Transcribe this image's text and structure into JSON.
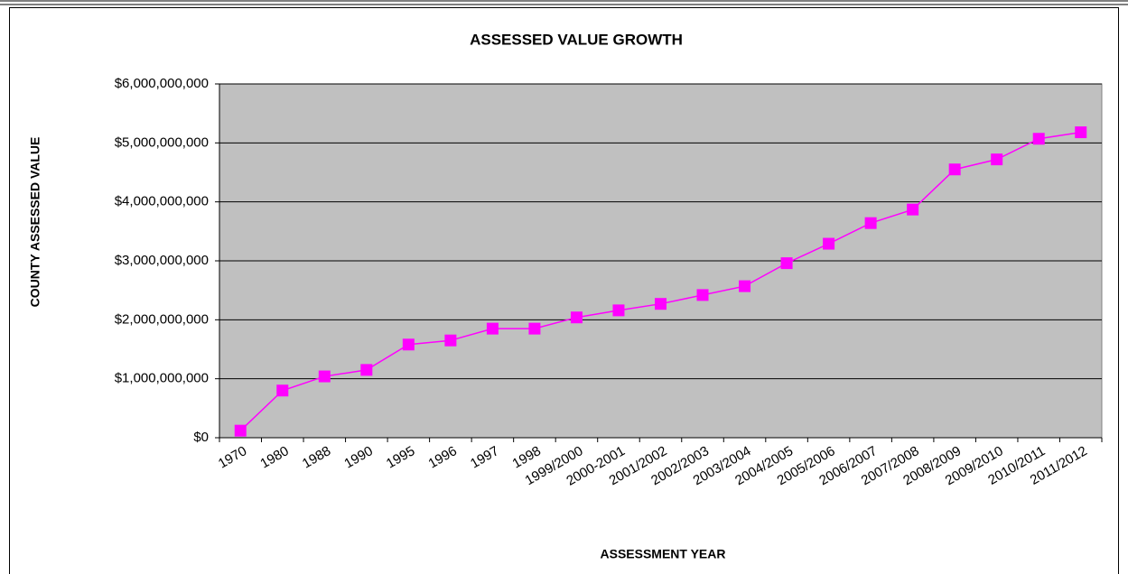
{
  "chart_data": {
    "type": "line",
    "title": "ASSESSED VALUE GROWTH",
    "x_label": "ASSESSMENT  YEAR",
    "y_label": "COUNTY ASSESSED  VALUE",
    "categories": [
      "1970",
      "1980",
      "1988",
      "1990",
      "1995",
      "1996",
      "1997",
      "1998",
      "1999/2000",
      "2000-2001",
      "2001/2002",
      "2002/2003",
      "2003/2004",
      "2004/2005",
      "2005/2006",
      "2006/2007",
      "2007/2008",
      "2008/2009",
      "2009/2010",
      "2010/2011",
      "2011/2012"
    ],
    "values": [
      120000000,
      800000000,
      1040000000,
      1150000000,
      1580000000,
      1650000000,
      1850000000,
      1850000000,
      2040000000,
      2160000000,
      2270000000,
      2420000000,
      2570000000,
      2960000000,
      3290000000,
      3640000000,
      3870000000,
      4550000000,
      4720000000,
      5070000000,
      5180000000
    ],
    "color": "#ff00ff",
    "ylim": [
      0,
      6000000000
    ],
    "yticks": [
      {
        "value": 0,
        "label": "$0"
      },
      {
        "value": 1000000000,
        "label": "$1,000,000,000"
      },
      {
        "value": 2000000000,
        "label": "$2,000,000,000"
      },
      {
        "value": 3000000000,
        "label": "$3,000,000,000"
      },
      {
        "value": 4000000000,
        "label": "$4,000,000,000"
      },
      {
        "value": 5000000000,
        "label": "$5,000,000,000"
      },
      {
        "value": 6000000000,
        "label": "$6,000,000,000"
      }
    ],
    "grid": true
  }
}
